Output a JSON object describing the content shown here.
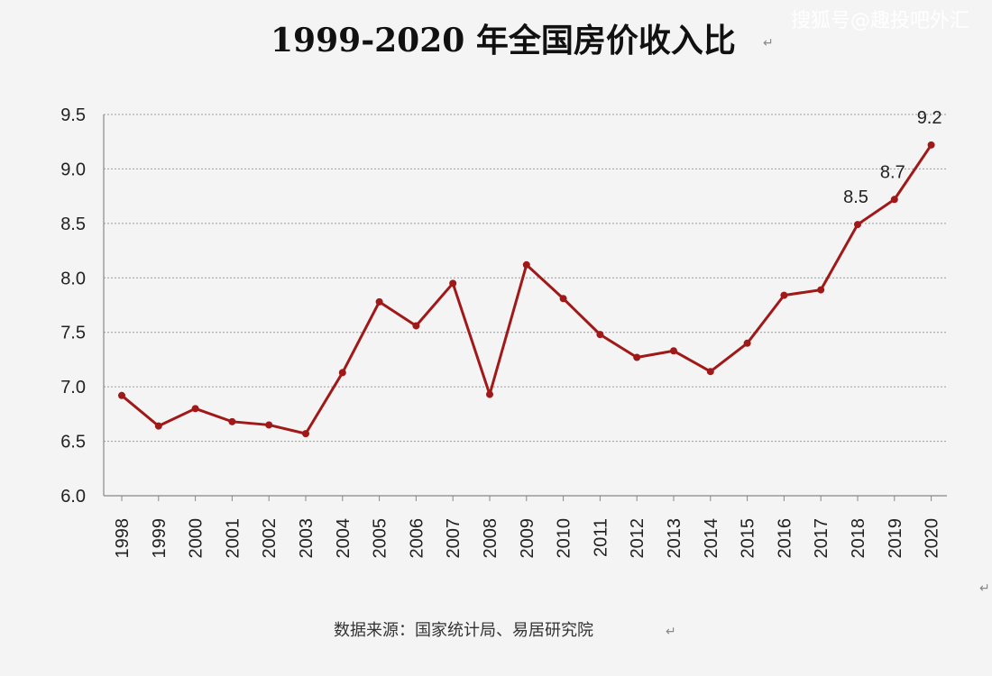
{
  "title": "1999-2020 年全国房价收入比",
  "watermark": "搜狐号@趣投吧外汇",
  "source": "数据来源：国家统计局、易居研究院",
  "return_mark": "↵",
  "colors": {
    "line": "#a01818",
    "grid": "#9a9a9a",
    "axis": "#888888",
    "background": "#f4f4f4"
  },
  "chart_data": {
    "type": "line",
    "title": "1999-2020 年全国房价收入比",
    "xlabel": "",
    "ylabel": "",
    "x": [
      "1998",
      "1999",
      "2000",
      "2001",
      "2002",
      "2003",
      "2004",
      "2005",
      "2006",
      "2007",
      "2008",
      "2009",
      "2010",
      "2011",
      "2012",
      "2013",
      "2014",
      "2015",
      "2016",
      "2017",
      "2018",
      "2019",
      "2020"
    ],
    "series": [
      {
        "values": [
          6.92,
          6.64,
          6.8,
          6.68,
          6.65,
          6.57,
          7.13,
          7.78,
          7.56,
          7.95,
          6.93,
          8.12,
          7.81,
          7.48,
          7.27,
          7.33,
          7.14,
          7.4,
          7.84,
          7.89,
          8.49,
          8.72,
          9.22
        ]
      }
    ],
    "ylim": [
      6.0,
      9.5
    ],
    "yticks": [
      "6.0",
      "6.5",
      "7.0",
      "7.5",
      "8.0",
      "8.5",
      "9.0",
      "9.5"
    ],
    "grid": true,
    "data_labels": [
      {
        "x": "2018",
        "text": "8.5"
      },
      {
        "x": "2019",
        "text": "8.7"
      },
      {
        "x": "2020",
        "text": "9.2"
      }
    ]
  }
}
